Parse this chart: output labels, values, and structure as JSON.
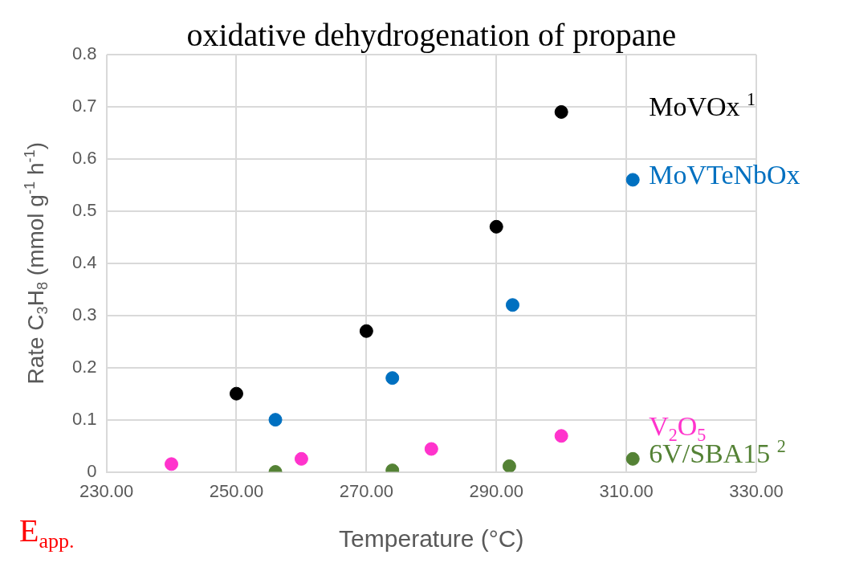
{
  "chart_data": {
    "type": "scatter",
    "title": "oxidative dehydrogenation of propane",
    "xlabel": "Temperature (°C)",
    "ylabel": "Rate C$_{3}$H$_{8}$ (mmol g$^{-1}$ h$^{-1}$)",
    "annotations": [
      "E$_{app.}$"
    ],
    "xlim": [
      230,
      330
    ],
    "xticks": [
      {
        "value": 230,
        "label": "230.00"
      },
      {
        "value": 250,
        "label": "250.00"
      },
      {
        "value": 270,
        "label": "270.00"
      },
      {
        "value": 290,
        "label": "290.00"
      },
      {
        "value": 310,
        "label": "310.00"
      },
      {
        "value": 330,
        "label": "330.00"
      }
    ],
    "ylim": [
      0,
      0.8
    ],
    "yticks": [
      0,
      0.1,
      0.2,
      0.3,
      0.4,
      0.5,
      0.6,
      0.7,
      0.8
    ],
    "grid": true,
    "legend": false,
    "marker": "circle",
    "series": [
      {
        "name": "MoVOx $^{1}$",
        "color": "#000000",
        "x": [
          250,
          270,
          290,
          300
        ],
        "values": [
          0.15,
          0.27,
          0.47,
          0.69
        ]
      },
      {
        "name": "MoVTeNbOx",
        "color": "#0070c0",
        "x": [
          256,
          274,
          292.5,
          311
        ],
        "values": [
          0.1,
          0.18,
          0.32,
          0.56
        ]
      },
      {
        "name": "V$_{2}$O$_{5}$",
        "color": "#ff33cc",
        "x": [
          240,
          260,
          280,
          300
        ],
        "values": [
          0.015,
          0.025,
          0.044,
          0.069
        ]
      },
      {
        "name": "6V/SBA15 $^{2}$",
        "color": "#548235",
        "x": [
          256,
          274,
          292,
          311
        ],
        "values": [
          0,
          0.003,
          0.011,
          0.025
        ]
      }
    ]
  }
}
